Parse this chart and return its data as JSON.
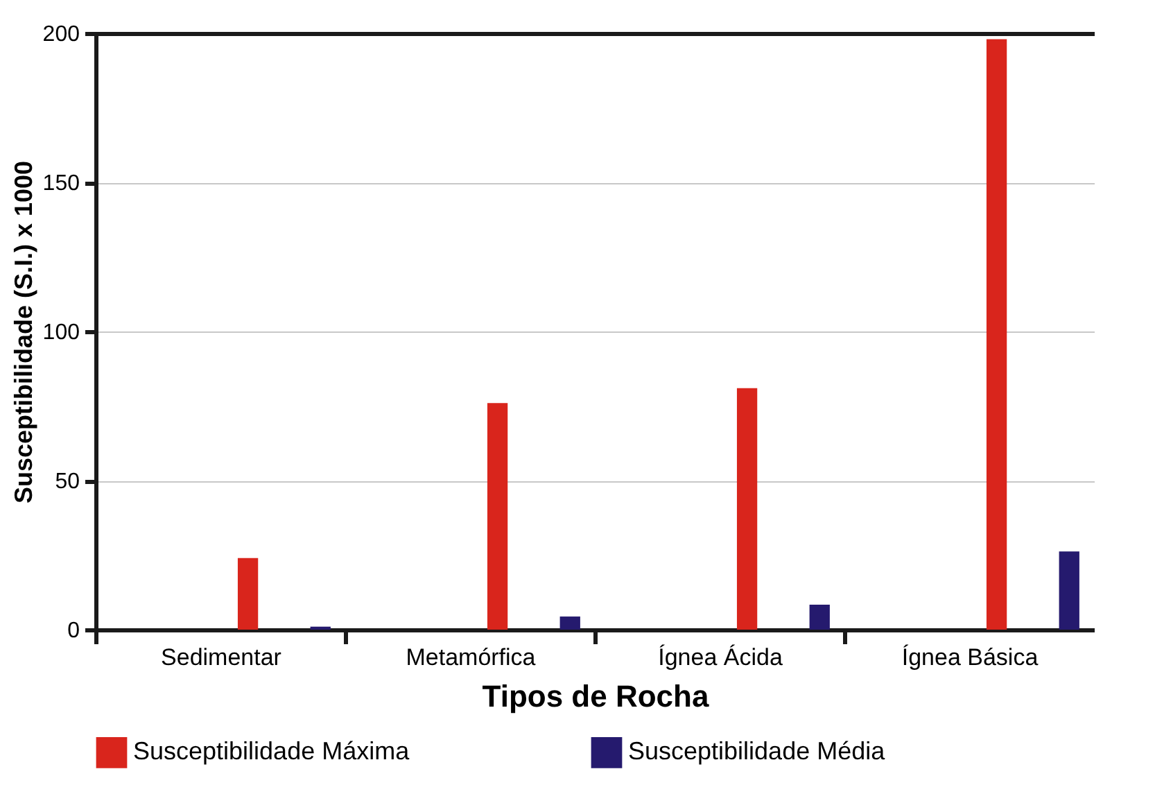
{
  "chart_data": {
    "type": "bar",
    "xlabel": "Tipos de Rocha",
    "ylabel": "Susceptibilidade (S.I.) x 1000",
    "categories": [
      "Sedimentar",
      "Metamórfica",
      "Ígnea Ácida",
      "Ígnea Básica"
    ],
    "series": [
      {
        "name": "Susceptibilidade Máxima",
        "color": "#d9251c",
        "values": [
          24,
          76,
          81,
          198
        ]
      },
      {
        "name": "Susceptibilidade Média",
        "color": "#251a6e",
        "values": [
          1,
          4.4,
          8.4,
          26.2
        ]
      }
    ],
    "ylim": [
      0,
      200
    ],
    "yticks": [
      0,
      50,
      100,
      150,
      200
    ],
    "grid": "y",
    "legend": "bottom"
  }
}
